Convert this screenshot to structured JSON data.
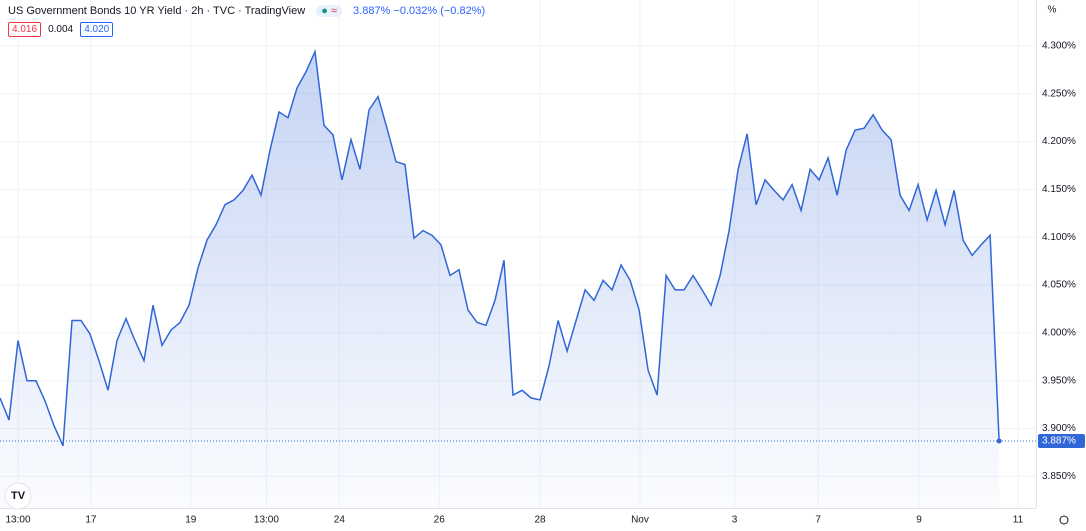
{
  "chart_data": {
    "type": "area",
    "title": "US Government Bonds 10 YR Yield · 2h · TVC · TradingView",
    "quote": {
      "last": "3.887%",
      "change": "−0.032%",
      "change_pct": "(−0.82%)"
    },
    "header_boxes": {
      "bid": "4.016",
      "spread": "0.004",
      "ask": "4.020"
    },
    "y_unit": "%",
    "last_price_label": "3.887%",
    "color": "#3166d6",
    "grid": true,
    "ylim": [
      3.817,
      4.348
    ],
    "xlim": [
      0,
      115.1
    ],
    "yticks": [
      {
        "value": 3.85,
        "label": "3.850%"
      },
      {
        "value": 3.9,
        "label": "3.900%"
      },
      {
        "value": 3.95,
        "label": "3.950%"
      },
      {
        "value": 4.0,
        "label": "4.000%"
      },
      {
        "value": 4.05,
        "label": "4.050%"
      },
      {
        "value": 4.1,
        "label": "4.100%"
      },
      {
        "value": 4.15,
        "label": "4.150%"
      },
      {
        "value": 4.2,
        "label": "4.200%"
      },
      {
        "value": 4.25,
        "label": "4.250%"
      },
      {
        "value": 4.3,
        "label": "4.300%"
      }
    ],
    "xticks": [
      {
        "value": 2,
        "label": "13:00"
      },
      {
        "value": 10.1,
        "label": "17"
      },
      {
        "value": 21.2,
        "label": "19"
      },
      {
        "value": 29.6,
        "label": "13:00"
      },
      {
        "value": 37.7,
        "label": "24"
      },
      {
        "value": 48.8,
        "label": "26"
      },
      {
        "value": 60,
        "label": "28"
      },
      {
        "value": 71.1,
        "label": "Nov"
      },
      {
        "value": 81.6,
        "label": "3"
      },
      {
        "value": 90.9,
        "label": "7"
      },
      {
        "value": 102.1,
        "label": "9"
      },
      {
        "value": 113.1,
        "label": "11"
      }
    ],
    "values": [
      3.932,
      3.909,
      3.992,
      3.95,
      3.95,
      3.929,
      3.903,
      3.882,
      4.013,
      4.013,
      3.999,
      3.971,
      3.94,
      3.992,
      4.015,
      3.992,
      3.971,
      4.029,
      3.987,
      4.003,
      4.011,
      4.029,
      4.068,
      4.097,
      4.113,
      4.134,
      4.139,
      4.149,
      4.165,
      4.144,
      4.191,
      4.231,
      4.225,
      4.256,
      4.273,
      4.294,
      4.217,
      4.207,
      4.16,
      4.202,
      4.171,
      4.233,
      4.247,
      4.214,
      4.179,
      4.176,
      4.099,
      4.107,
      4.102,
      4.092,
      4.06,
      4.066,
      4.024,
      4.011,
      4.008,
      4.034,
      4.076,
      3.935,
      3.94,
      3.932,
      3.93,
      3.966,
      4.013,
      3.981,
      4.013,
      4.045,
      4.034,
      4.055,
      4.045,
      4.071,
      4.055,
      4.024,
      3.961,
      3.935,
      4.06,
      4.045,
      4.045,
      4.06,
      4.045,
      4.029,
      4.06,
      4.107,
      4.171,
      4.208,
      4.134,
      4.16,
      4.149,
      4.139,
      4.155,
      4.128,
      4.171,
      4.16,
      4.183,
      4.144,
      4.191,
      4.212,
      4.214,
      4.228,
      4.212,
      4.202,
      4.144,
      4.128,
      4.155,
      4.118,
      4.149,
      4.113,
      4.149,
      4.097,
      4.081,
      4.092,
      4.102,
      3.887
    ]
  }
}
